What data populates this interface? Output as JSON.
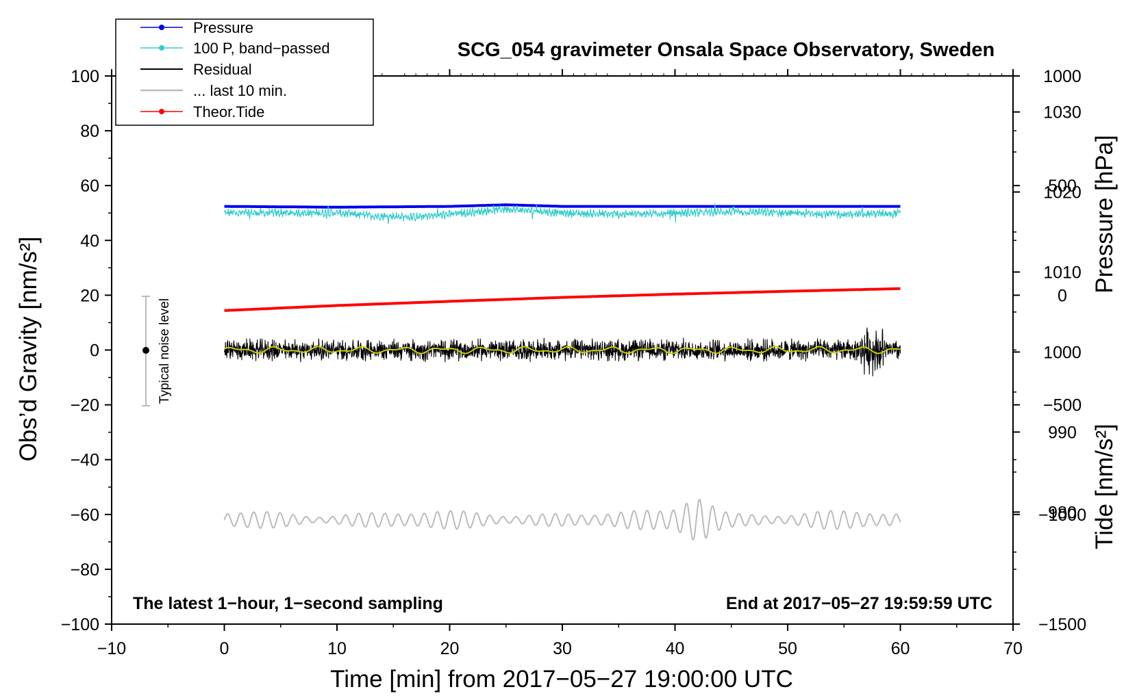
{
  "chart_data": {
    "type": "line",
    "title": "SCG_054 gravimeter Onsala Space Observatory, Sweden",
    "xlabel": "Time [min] from 2017−05−27 19:00:00 UTC",
    "ylabel_left": "Obs’d Gravity [nm/s²]",
    "ylabel_right_top": "Pressure [hPa]",
    "ylabel_right_bottom": "Tide [nm/s²]",
    "xlim": [
      -10,
      70
    ],
    "ylim": [
      -100,
      100
    ],
    "pressure_axis_range": [
      966,
      1034.5
    ],
    "tide_axis_range": [
      -1500,
      1000
    ],
    "x_ticks": [
      -10,
      0,
      10,
      20,
      30,
      40,
      50,
      60,
      70
    ],
    "x_tick_labels": [
      "−10",
      "0",
      "10",
      "20",
      "30",
      "40",
      "50",
      "60",
      "70"
    ],
    "y_ticks": [
      -100,
      -80,
      -60,
      -40,
      -20,
      0,
      20,
      40,
      60,
      80,
      100
    ],
    "y_tick_labels": [
      "−100",
      "−80",
      "−60",
      "−40",
      "−20",
      "0",
      "20",
      "40",
      "60",
      "80",
      "100"
    ],
    "pressure_ticks": [
      980,
      990,
      1000,
      1010,
      1020,
      1030
    ],
    "pressure_tick_labels": [
      "980",
      "990",
      "1000",
      "1010",
      "1020",
      "1030"
    ],
    "tide_ticks": [
      -1500,
      -1000,
      -500,
      0,
      500,
      1000
    ],
    "tide_tick_labels": [
      "−1500",
      "−1000",
      "−500",
      "0",
      "500",
      "1000"
    ],
    "annotations": {
      "bottom_left": "The latest 1−hour, 1−second sampling",
      "bottom_right": "End at 2017−05−27 19:59:59 UTC",
      "noise_label": "Typical noise level"
    },
    "noise_bar": {
      "x": -7,
      "center": 0,
      "low": -20,
      "high": 20
    },
    "legend": {
      "placement": "top-left",
      "entries": [
        "Pressure",
        "100 P, band−passed",
        "Residual",
        "... last 10 min.",
        "Theor.Tide"
      ]
    },
    "series": [
      {
        "name": "Pressure",
        "axis": "pressure",
        "color": "#0000ee",
        "x": [
          0,
          10,
          20,
          25,
          30,
          40,
          50,
          60
        ],
        "y": [
          1018.2,
          1018.1,
          1018.2,
          1018.4,
          1018.2,
          1018.2,
          1018.2,
          1018.2
        ]
      },
      {
        "name": "100 P, band−passed",
        "axis": "gravity",
        "color": "#33cccc",
        "noisy": true,
        "x": [
          0,
          5,
          10,
          13,
          17,
          20,
          25,
          30,
          35,
          40,
          45,
          50,
          55,
          60
        ],
        "y": [
          50,
          50,
          50,
          49,
          48.5,
          49.5,
          51.5,
          50,
          49.5,
          50,
          50.5,
          50,
          49.5,
          50
        ]
      },
      {
        "name": "Residual",
        "axis": "gravity",
        "color": "#000000",
        "noisy": true,
        "x": [
          0,
          10,
          20,
          30,
          40,
          50,
          55,
          57,
          58,
          60
        ],
        "y": [
          0,
          0,
          0,
          0,
          0,
          0,
          0,
          0,
          0,
          0
        ]
      },
      {
        "name": "... last 10 min.",
        "axis": "gravity",
        "color": "#bbbbbb",
        "oscillating": true,
        "x": [
          0,
          10,
          20,
          30,
          40,
          42,
          45,
          50,
          60
        ],
        "y": [
          -62,
          -62,
          -62,
          -62,
          -62,
          -62,
          -62,
          -62,
          -62
        ]
      },
      {
        "name": "Theor.Tide",
        "axis": "tide",
        "color": "#ff0000",
        "x": [
          0,
          10,
          20,
          30,
          40,
          50,
          60
        ],
        "y": [
          -70,
          -47,
          -28,
          -10,
          5,
          18,
          30
        ]
      }
    ],
    "grid": false
  }
}
